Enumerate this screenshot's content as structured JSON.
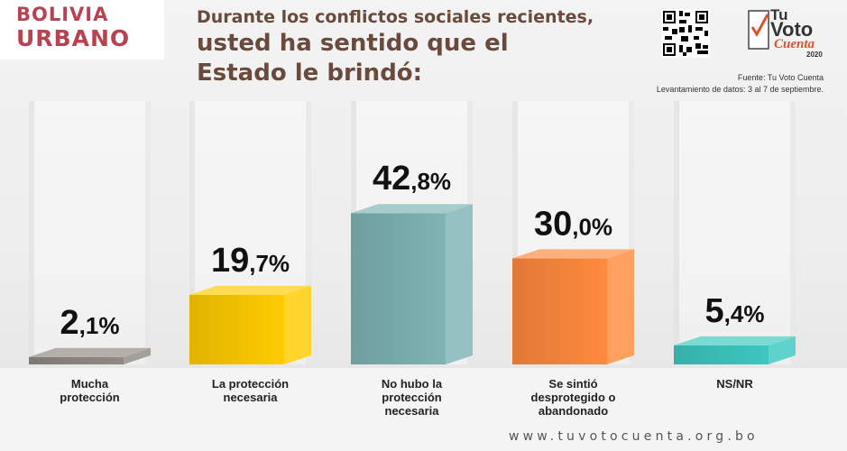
{
  "brand": {
    "line1": "BOLIVIA",
    "line2": "URBANO"
  },
  "title": {
    "line1": "Durante los conflictos sociales recientes,",
    "line2": "usted ha sentido que el",
    "line3": "Estado le brindó:"
  },
  "logo": {
    "text1": "Tu",
    "text2": "Voto",
    "text3": "Cuenta",
    "year": "2020"
  },
  "source": {
    "line1": "Fuente: Tu Voto Cuenta",
    "line2": "Levantamiento de datos: 3 al 7 de septiembre."
  },
  "footer_url": "www.tuvotocuenta.org.bo",
  "chart_data": {
    "type": "bar",
    "categories": [
      "Mucha\nprotección",
      "La protección\nnecesaria",
      "No hubo la\nprotección\nnecesaria",
      "Se sintió\ndesprotegido o\nabandonado",
      "NS/NR"
    ],
    "values": [
      2.1,
      19.7,
      42.8,
      30.0,
      5.4
    ],
    "value_labels": [
      {
        "int": "2",
        "dec": ",1%"
      },
      {
        "int": "19",
        "dec": ",7%"
      },
      {
        "int": "42",
        "dec": ",8%"
      },
      {
        "int": "30",
        "dec": ",0%"
      },
      {
        "int": "5",
        "dec": ",4%"
      }
    ],
    "colors": [
      "#8f8a82",
      "#ffcc00",
      "#7fb3b5",
      "#ff8a3d",
      "#3cc8c0"
    ],
    "ylim": [
      0,
      50
    ],
    "grid": false
  }
}
